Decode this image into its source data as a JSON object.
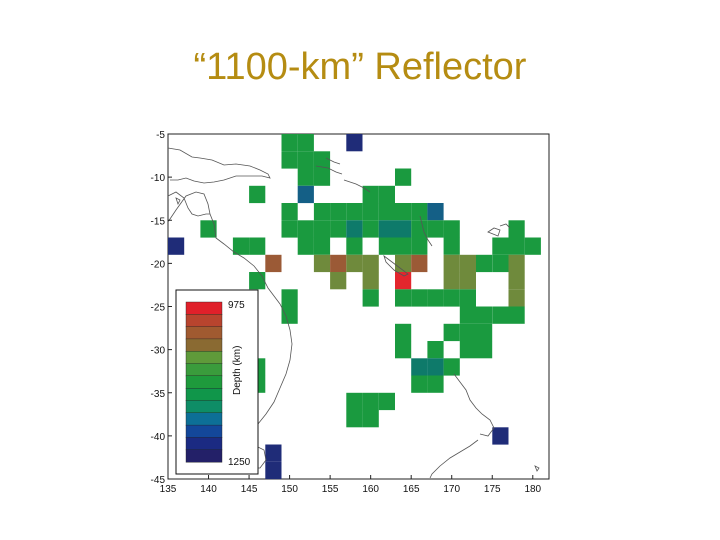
{
  "slide": {
    "title": "“1100-km” Reflector"
  },
  "chart_data": {
    "type": "heatmap",
    "title": "“1100-km” Reflector",
    "xlabel": "",
    "ylabel": "",
    "xlim": [
      135,
      182
    ],
    "ylim": [
      -45,
      -5
    ],
    "x_ticks": [
      135,
      140,
      145,
      150,
      155,
      160,
      165,
      170,
      175,
      180
    ],
    "y_ticks": [
      -5,
      -10,
      -15,
      -20,
      -25,
      -30,
      -35,
      -40,
      -45
    ],
    "cell_size_deg": 2,
    "colorbar": {
      "title": "Depth (km)",
      "min_label": "975",
      "max_label": "1250",
      "min": 975,
      "max": 1250,
      "colors": [
        "#e0202a",
        "#b8442e",
        "#a05a30",
        "#8a6a32",
        "#5f9a3a",
        "#3a9c3c",
        "#1e9a3c",
        "#10964a",
        "#0e8d66",
        "#0d6f97",
        "#13479a",
        "#1b2a82",
        "#232068"
      ]
    },
    "colors": {
      "green": "#1a9a3f",
      "teal": "#0e7a6a",
      "olive": "#6f8a3c",
      "brown": "#9b5a36",
      "red": "#e3262d",
      "navy": "#1f2c78",
      "blue_teal": "#145f86",
      "coast": "#555555"
    },
    "cells": [
      {
        "lon": 150,
        "lat": -6,
        "c": "green"
      },
      {
        "lon": 152,
        "lat": -6,
        "c": "green"
      },
      {
        "lon": 158,
        "lat": -6,
        "c": "navy"
      },
      {
        "lon": 150,
        "lat": -8,
        "c": "green"
      },
      {
        "lon": 152,
        "lat": -8,
        "c": "green"
      },
      {
        "lon": 154,
        "lat": -8,
        "c": "green"
      },
      {
        "lon": 152,
        "lat": -10,
        "c": "green"
      },
      {
        "lon": 154,
        "lat": -10,
        "c": "green"
      },
      {
        "lon": 164,
        "lat": -10,
        "c": "green"
      },
      {
        "lon": 146,
        "lat": -12,
        "c": "green"
      },
      {
        "lon": 152,
        "lat": -12,
        "c": "blue_teal"
      },
      {
        "lon": 160,
        "lat": -12,
        "c": "green"
      },
      {
        "lon": 162,
        "lat": -12,
        "c": "green"
      },
      {
        "lon": 150,
        "lat": -14,
        "c": "green"
      },
      {
        "lon": 154,
        "lat": -14,
        "c": "green"
      },
      {
        "lon": 156,
        "lat": -14,
        "c": "green"
      },
      {
        "lon": 158,
        "lat": -14,
        "c": "green"
      },
      {
        "lon": 160,
        "lat": -14,
        "c": "green"
      },
      {
        "lon": 162,
        "lat": -14,
        "c": "green"
      },
      {
        "lon": 164,
        "lat": -14,
        "c": "green"
      },
      {
        "lon": 166,
        "lat": -14,
        "c": "green"
      },
      {
        "lon": 168,
        "lat": -14,
        "c": "blue_teal"
      },
      {
        "lon": 140,
        "lat": -16,
        "c": "green"
      },
      {
        "lon": 150,
        "lat": -16,
        "c": "green"
      },
      {
        "lon": 152,
        "lat": -16,
        "c": "green"
      },
      {
        "lon": 154,
        "lat": -16,
        "c": "green"
      },
      {
        "lon": 156,
        "lat": -16,
        "c": "green"
      },
      {
        "lon": 158,
        "lat": -16,
        "c": "teal"
      },
      {
        "lon": 160,
        "lat": -16,
        "c": "green"
      },
      {
        "lon": 162,
        "lat": -16,
        "c": "teal"
      },
      {
        "lon": 164,
        "lat": -16,
        "c": "teal"
      },
      {
        "lon": 166,
        "lat": -16,
        "c": "green"
      },
      {
        "lon": 168,
        "lat": -16,
        "c": "green"
      },
      {
        "lon": 170,
        "lat": -16,
        "c": "green"
      },
      {
        "lon": 178,
        "lat": -16,
        "c": "green"
      },
      {
        "lon": 136,
        "lat": -18,
        "c": "navy"
      },
      {
        "lon": 144,
        "lat": -18,
        "c": "green"
      },
      {
        "lon": 146,
        "lat": -18,
        "c": "green"
      },
      {
        "lon": 152,
        "lat": -18,
        "c": "green"
      },
      {
        "lon": 154,
        "lat": -18,
        "c": "green"
      },
      {
        "lon": 158,
        "lat": -18,
        "c": "green"
      },
      {
        "lon": 162,
        "lat": -18,
        "c": "green"
      },
      {
        "lon": 164,
        "lat": -18,
        "c": "green"
      },
      {
        "lon": 166,
        "lat": -18,
        "c": "green"
      },
      {
        "lon": 170,
        "lat": -18,
        "c": "green"
      },
      {
        "lon": 176,
        "lat": -18,
        "c": "green"
      },
      {
        "lon": 178,
        "lat": -18,
        "c": "green"
      },
      {
        "lon": 180,
        "lat": -18,
        "c": "green"
      },
      {
        "lon": 148,
        "lat": -20,
        "c": "brown"
      },
      {
        "lon": 154,
        "lat": -20,
        "c": "olive"
      },
      {
        "lon": 156,
        "lat": -20,
        "c": "brown"
      },
      {
        "lon": 158,
        "lat": -20,
        "c": "olive"
      },
      {
        "lon": 160,
        "lat": -20,
        "c": "olive"
      },
      {
        "lon": 164,
        "lat": -20,
        "c": "olive"
      },
      {
        "lon": 166,
        "lat": -20,
        "c": "brown"
      },
      {
        "lon": 170,
        "lat": -20,
        "c": "olive"
      },
      {
        "lon": 172,
        "lat": -20,
        "c": "olive"
      },
      {
        "lon": 174,
        "lat": -20,
        "c": "green"
      },
      {
        "lon": 176,
        "lat": -20,
        "c": "green"
      },
      {
        "lon": 178,
        "lat": -20,
        "c": "olive"
      },
      {
        "lon": 146,
        "lat": -22,
        "c": "green"
      },
      {
        "lon": 156,
        "lat": -22,
        "c": "olive"
      },
      {
        "lon": 160,
        "lat": -22,
        "c": "olive"
      },
      {
        "lon": 164,
        "lat": -22,
        "c": "red"
      },
      {
        "lon": 170,
        "lat": -22,
        "c": "olive"
      },
      {
        "lon": 172,
        "lat": -22,
        "c": "olive"
      },
      {
        "lon": 178,
        "lat": -22,
        "c": "olive"
      },
      {
        "lon": 150,
        "lat": -24,
        "c": "green"
      },
      {
        "lon": 160,
        "lat": -24,
        "c": "green"
      },
      {
        "lon": 164,
        "lat": -24,
        "c": "green"
      },
      {
        "lon": 166,
        "lat": -24,
        "c": "green"
      },
      {
        "lon": 168,
        "lat": -24,
        "c": "green"
      },
      {
        "lon": 170,
        "lat": -24,
        "c": "green"
      },
      {
        "lon": 172,
        "lat": -24,
        "c": "green"
      },
      {
        "lon": 178,
        "lat": -24,
        "c": "olive"
      },
      {
        "lon": 150,
        "lat": -26,
        "c": "green"
      },
      {
        "lon": 172,
        "lat": -26,
        "c": "green"
      },
      {
        "lon": 174,
        "lat": -26,
        "c": "green"
      },
      {
        "lon": 176,
        "lat": -26,
        "c": "green"
      },
      {
        "lon": 178,
        "lat": -26,
        "c": "green"
      },
      {
        "lon": 164,
        "lat": -28,
        "c": "green"
      },
      {
        "lon": 170,
        "lat": -28,
        "c": "green"
      },
      {
        "lon": 172,
        "lat": -28,
        "c": "green"
      },
      {
        "lon": 174,
        "lat": -28,
        "c": "green"
      },
      {
        "lon": 164,
        "lat": -30,
        "c": "green"
      },
      {
        "lon": 168,
        "lat": -30,
        "c": "green"
      },
      {
        "lon": 172,
        "lat": -30,
        "c": "green"
      },
      {
        "lon": 174,
        "lat": -30,
        "c": "green"
      },
      {
        "lon": 146,
        "lat": -32,
        "c": "green"
      },
      {
        "lon": 166,
        "lat": -32,
        "c": "teal"
      },
      {
        "lon": 168,
        "lat": -32,
        "c": "teal"
      },
      {
        "lon": 170,
        "lat": -32,
        "c": "green"
      },
      {
        "lon": 146,
        "lat": -34,
        "c": "green"
      },
      {
        "lon": 166,
        "lat": -34,
        "c": "green"
      },
      {
        "lon": 168,
        "lat": -34,
        "c": "green"
      },
      {
        "lon": 158,
        "lat": -36,
        "c": "green"
      },
      {
        "lon": 160,
        "lat": -36,
        "c": "green"
      },
      {
        "lon": 162,
        "lat": -36,
        "c": "green"
      },
      {
        "lon": 158,
        "lat": -38,
        "c": "green"
      },
      {
        "lon": 160,
        "lat": -38,
        "c": "green"
      },
      {
        "lon": 176,
        "lat": -40,
        "c": "navy"
      },
      {
        "lon": 148,
        "lat": -42,
        "c": "navy"
      },
      {
        "lon": 148,
        "lat": -44,
        "c": "navy"
      }
    ]
  }
}
